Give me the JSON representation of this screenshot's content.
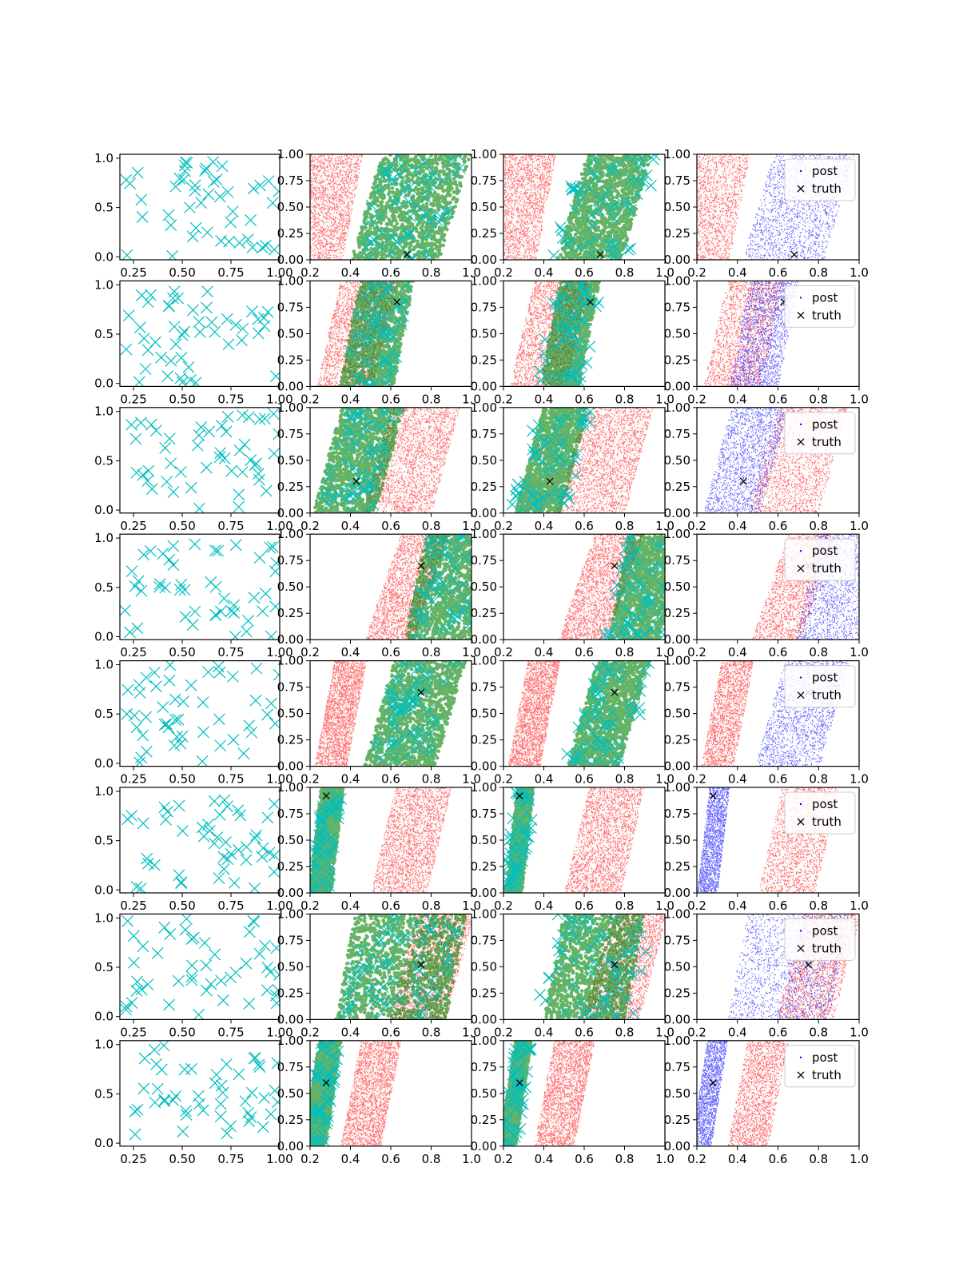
{
  "figure": {
    "layout": {
      "rows": 8,
      "cols": 4
    },
    "background": "#ffffff"
  },
  "colors": {
    "prior_x": "#00bfbf",
    "proposal_red": "#ff0000",
    "proposal_green": "#008000",
    "posterior_alt": "#0000ff",
    "truth": "#000000"
  },
  "legend": {
    "post_label": "post",
    "truth_label": "truth",
    "placement": "top-right"
  },
  "chart_data": {
    "type": "scatter",
    "panel_kinds": [
      "prior",
      "proposal_mix",
      "proposal_mix",
      "posterior"
    ],
    "column_xlim": [
      [
        0.18,
        1.0
      ],
      [
        0.2,
        1.0
      ],
      [
        0.2,
        1.0
      ],
      [
        0.2,
        1.0
      ]
    ],
    "column_x_ticks": [
      [
        "0.25",
        "0.50",
        "0.75",
        "1.00"
      ],
      [
        "0.2",
        "0.4",
        "0.6",
        "0.8",
        "1.0"
      ],
      [
        "0.2",
        "0.4",
        "0.6",
        "0.8",
        "1.0"
      ],
      [
        "0.2",
        "0.4",
        "0.6",
        "0.8",
        "1.0"
      ]
    ],
    "prior_y_ticks": [
      "0.0",
      "0.5",
      "1.0"
    ],
    "prior_ylim": [
      -0.03,
      1.04
    ],
    "post_y_ticks": [
      "0.00",
      "0.25",
      "0.50",
      "0.75",
      "1.00"
    ],
    "post_ylim": [
      0.0,
      1.0
    ],
    "rows": [
      {
        "truth": [
          0.68,
          0.05
        ],
        "red": {
          "x0": 0.27,
          "w": 0.14,
          "slope": 0.1
        },
        "other": {
          "x0": 0.7,
          "w": 0.2,
          "slope": 0.15
        },
        "post_color": "blue",
        "post_only_red": false
      },
      {
        "truth": [
          0.63,
          0.8
        ],
        "red": {
          "x0": 0.43,
          "w": 0.14,
          "slope": 0.12
        },
        "other": {
          "x0": 0.53,
          "w": 0.12,
          "slope": 0.1
        },
        "post_color": "blue",
        "post_only_red": false
      },
      {
        "truth": [
          0.43,
          0.3
        ],
        "red": {
          "x0": 0.7,
          "w": 0.17,
          "slope": 0.14
        },
        "other": {
          "x0": 0.44,
          "w": 0.14,
          "slope": 0.14
        },
        "post_color": "blue",
        "post_only_red": false
      },
      {
        "truth": [
          0.75,
          0.7
        ],
        "red": {
          "x0": 0.68,
          "w": 0.12,
          "slope": 0.18
        },
        "other": {
          "x0": 0.9,
          "w": 0.16,
          "slope": 0.1
        },
        "post_color": "blue",
        "post_only_red": false
      },
      {
        "truth": [
          0.75,
          0.7
        ],
        "red": {
          "x0": 0.35,
          "w": 0.08,
          "slope": 0.1
        },
        "other": {
          "x0": 0.72,
          "w": 0.16,
          "slope": 0.15
        },
        "post_color": "blue",
        "post_only_red": false
      },
      {
        "truth": [
          0.28,
          0.92
        ],
        "red": {
          "x0": 0.7,
          "w": 0.14,
          "slope": 0.12
        },
        "other": {
          "x0": 0.28,
          "w": 0.05,
          "slope": 0.06
        },
        "post_color": "blue",
        "post_only_red": false
      },
      {
        "truth": [
          0.75,
          0.52
        ],
        "red": {
          "x0": 0.8,
          "w": 0.14,
          "slope": 0.14
        },
        "other": {
          "x0": 0.65,
          "w": 0.25,
          "slope": 0.1
        },
        "post_color": "blue",
        "post_only_red": false
      },
      {
        "truth": [
          0.28,
          0.6
        ],
        "red": {
          "x0": 0.5,
          "w": 0.1,
          "slope": 0.1
        },
        "other": {
          "x0": 0.26,
          "w": 0.05,
          "slope": 0.08
        },
        "post_color": "blue",
        "post_only_red": false
      }
    ]
  }
}
